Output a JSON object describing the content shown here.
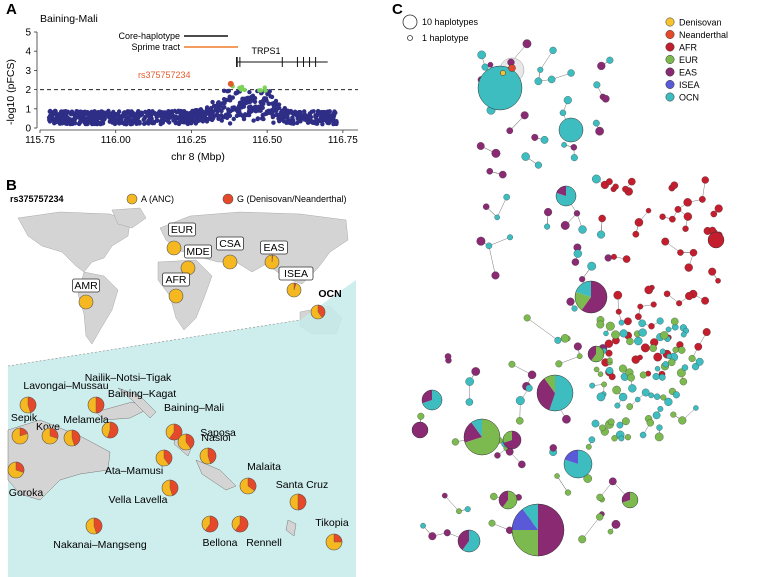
{
  "panel_a": {
    "letter": "A",
    "title": "Baining-Mali",
    "ylabel": "-log10 (pFCS)",
    "xlabel": "chr 8 (Mbp)",
    "legend_core": "Core-haplotype",
    "legend_sprime": "Sprime tract",
    "snp_label": "rs375757234",
    "gene_label": "TRPS1",
    "colors": {
      "points": "#2e2e86",
      "highlight": "#7dd35a",
      "snp": "#e35b2b",
      "sprime": "#f07a2a",
      "core": "#111111"
    },
    "chart_data": {
      "type": "scatter",
      "xlim": [
        115.75,
        116.8
      ],
      "ylim": [
        0,
        5
      ],
      "xticks": [
        "115.75",
        "116.00",
        "116.25",
        "116.50",
        "116.75"
      ],
      "yticks": [
        "0",
        "1",
        "2",
        "3",
        "4",
        "5"
      ],
      "threshold": 2,
      "core_haplotype": [
        116.34,
        116.47
      ],
      "sprime_tract": [
        116.34,
        116.5
      ],
      "snp_position": [
        116.38,
        2.3
      ],
      "gene_span": [
        116.4,
        116.7
      ]
    }
  },
  "panel_b": {
    "letter": "B",
    "snp": "rs375757234",
    "legend_anc": "A (ANC)",
    "legend_derived": "G (Denisovan/Neanderthal)",
    "colors": {
      "anc": "#f5b820",
      "derived": "#e6492a",
      "land": "#d3d3d3",
      "sea": "#bfe8e8"
    },
    "world": [
      {
        "label": "EUR",
        "derived": 0.0
      },
      {
        "label": "MDE",
        "derived": 0.0
      },
      {
        "label": "CSA",
        "derived": 0.0
      },
      {
        "label": "EAS",
        "derived": 0.02
      },
      {
        "label": "AFR",
        "derived": 0.0
      },
      {
        "label": "ISEA",
        "derived": 0.05
      },
      {
        "label": "AMR",
        "derived": 0.0
      },
      {
        "label": "OCN",
        "derived": 0.4
      }
    ],
    "oceania": [
      {
        "label": "Lavongai–Mussau",
        "derived": 0.45
      },
      {
        "label": "Nailik–Notsi–Tigak",
        "derived": 0.5
      },
      {
        "label": "Baining–Kagat",
        "derived": 0.55
      },
      {
        "label": "Baining–Mali",
        "derived": 0.6
      },
      {
        "label": "Sepik",
        "derived": 0.2
      },
      {
        "label": "Kove",
        "derived": 0.3
      },
      {
        "label": "Melamela",
        "derived": 0.45
      },
      {
        "label": "Saposa",
        "derived": 0.4
      },
      {
        "label": "Goroka",
        "derived": 0.3
      },
      {
        "label": "Nasioi",
        "derived": 0.45
      },
      {
        "label": "Ata–Mamusi",
        "derived": 0.4
      },
      {
        "label": "Malaita",
        "derived": 0.35
      },
      {
        "label": "Vella Lavella",
        "derived": 0.45
      },
      {
        "label": "Santa Cruz",
        "derived": 0.5
      },
      {
        "label": "Nakanai–Mangseng",
        "derived": 0.45
      },
      {
        "label": "Bellona",
        "derived": 0.6
      },
      {
        "label": "Rennell",
        "derived": 0.6
      },
      {
        "label": "Tikopia",
        "derived": 0.25
      }
    ]
  },
  "panel_c": {
    "letter": "C",
    "size_legend_large": "10 haplotypes",
    "size_legend_small": "1   haplotype",
    "legend": [
      {
        "label": "Denisovan",
        "color": "#f5c430"
      },
      {
        "label": "Neanderthal",
        "color": "#e6492a"
      },
      {
        "label": "AFR",
        "color": "#c41e2e"
      },
      {
        "label": "EUR",
        "color": "#7cba4f"
      },
      {
        "label": "EAS",
        "color": "#8a2a73"
      },
      {
        "label": "ISEA",
        "color": "#5a5ad8"
      },
      {
        "label": "OCN",
        "color": "#3dbdc0"
      }
    ]
  }
}
